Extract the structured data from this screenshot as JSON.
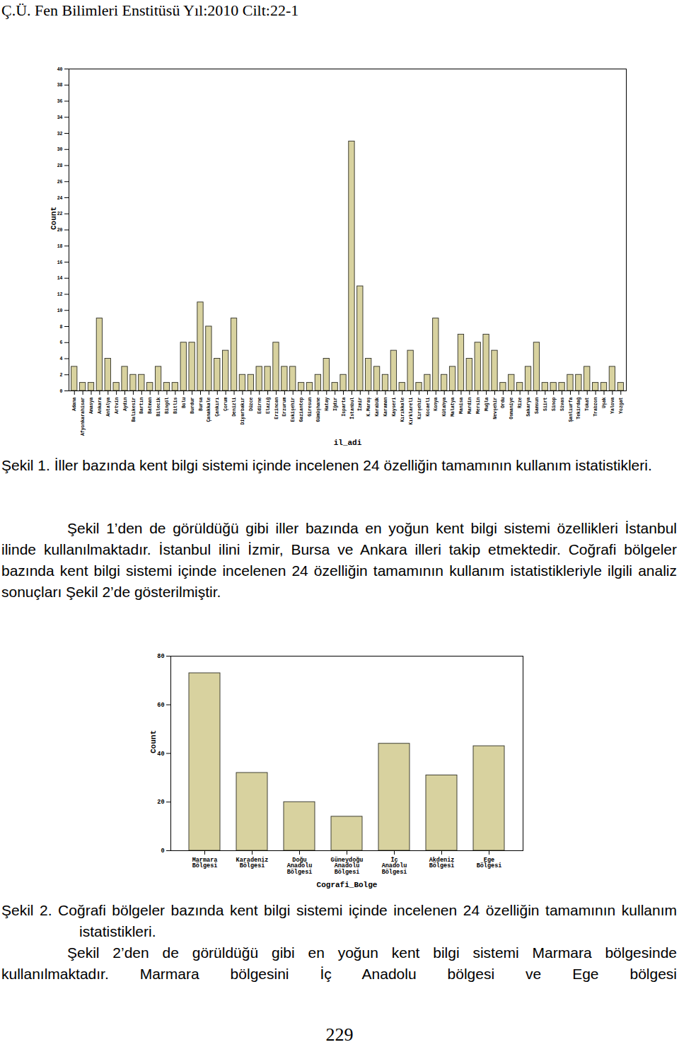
{
  "header": "Ç.Ü. Fen Bilimleri Enstitüsü Yıl:2010 Cilt:22-1",
  "chart_data": [
    {
      "type": "bar",
      "xlabel": "il_adi",
      "ylabel": "Count",
      "categories": [
        "Adana",
        "Afyonkarahisar",
        "Amasya",
        "Ankara",
        "Antalya",
        "Artvin",
        "Aydın",
        "Balıkesir",
        "Bartın",
        "Batman",
        "Bilecik",
        "Bingöl",
        "Bitlis",
        "Bolu",
        "Burdur",
        "Bursa",
        "Çanakkale",
        "Çankırı",
        "Çorum",
        "Denizli",
        "Diyarbakır",
        "Düzce",
        "Edirne",
        "Elazığ",
        "Erzincan",
        "Erzurum",
        "Eskişehir",
        "Gaziantep",
        "Giresun",
        "Gümüşhane",
        "Hatay",
        "Iğdır",
        "Isparta",
        "İstanbul",
        "İzmir",
        "K.Maraş",
        "Karabük",
        "Karaman",
        "Kayseri",
        "Kırıkkale",
        "Kırklareli",
        "Kırşehir",
        "Kocaeli",
        "Konya",
        "Kütahya",
        "Malatya",
        "Manisa",
        "Mardin",
        "Mersin",
        "Muğla",
        "Nevşehir",
        "Ordu",
        "Osmaniye",
        "Rize",
        "Sakarya",
        "Samsun",
        "Siirt",
        "Sinop",
        "Sivas",
        "Şanlıurfa",
        "Tekirdağ",
        "Tokat",
        "Trabzon",
        "Uşak",
        "Yalova",
        "Yozgat"
      ],
      "values": [
        3,
        1,
        1,
        9,
        4,
        1,
        3,
        2,
        2,
        1,
        3,
        1,
        1,
        6,
        6,
        11,
        8,
        4,
        5,
        9,
        2,
        2,
        3,
        3,
        6,
        3,
        3,
        1,
        1,
        2,
        4,
        1,
        2,
        31,
        13,
        4,
        3,
        2,
        5,
        1,
        5,
        1,
        2,
        9,
        2,
        3,
        7,
        4,
        6,
        7,
        5,
        1,
        2,
        1,
        3,
        6,
        1,
        1,
        1,
        2,
        2,
        3,
        1,
        1,
        3,
        1
      ],
      "color": "#d8d29f",
      "ylim": [
        0,
        40
      ],
      "yticks": [
        0,
        2,
        4,
        6,
        8,
        10,
        12,
        14,
        16,
        18,
        20,
        22,
        24,
        26,
        28,
        30,
        32,
        34,
        36,
        38,
        40
      ]
    },
    {
      "type": "bar",
      "xlabel": "Cografi_Bolge",
      "ylabel": "Count",
      "categories": [
        "Marmara Bölgesi",
        "Karadeniz Bölgesi",
        "Doğu Anadolu Bölgesi",
        "Güneydoğu Anadolu Bölgesi",
        "İç Anadolu Bölgesi",
        "Akdeniz Bölgesi",
        "Ege Bölgesi"
      ],
      "values": [
        73,
        32,
        20,
        14,
        44,
        31,
        43
      ],
      "color": "#d8d29f",
      "ylim": [
        0,
        80
      ],
      "yticks": [
        0,
        20,
        40,
        60,
        80
      ]
    }
  ],
  "captions": [
    "Şekil 1. İller bazında kent bilgi sistemi içinde incelenen 24 özelliğin tamamının kullanım istatistikleri.",
    "Şekil 2. Coğrafi bölgeler bazında kent bilgi sistemi içinde incelenen 24 özelliğin tamamının kullanım istatistikleri."
  ],
  "paragraphs": [
    "Şekil 1’den de görüldüğü gibi iller bazında en yoğun kent bilgi sistemi özellikleri İstanbul ilinde kullanılmaktadır. İstanbul ilini İzmir, Bursa ve Ankara illeri takip etmektedir. Coğrafi bölgeler bazında kent bilgi sistemi içinde incelenen 24 özelliğin tamamının kullanım istatistikleriyle ilgili analiz sonuçları Şekil 2’de gösterilmiştir.",
    "Şekil 2’den de görüldüğü gibi en yoğun kent bilgi sistemi Marmara bölgesinde kullanılmaktadır. Marmara bölgesini İç Anadolu bölgesi ve Ege bölgesi"
  ],
  "page_number": "229"
}
